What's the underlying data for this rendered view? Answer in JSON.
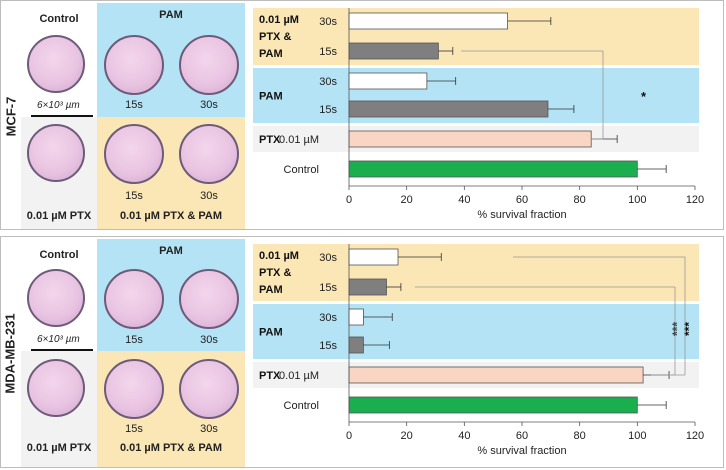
{
  "images": {
    "control": "Control",
    "pam": "PAM",
    "ptx": "0.01 µM PTX",
    "ptx_pam": "0.01 µM PTX & PAM",
    "t15": "15s",
    "t30": "30s",
    "scale": "6×10³ µm"
  },
  "chart_data": [
    {
      "type": "bar",
      "panel_label": "MCF-7",
      "xlabel": "% survival fraction",
      "xlim": [
        0,
        120
      ],
      "xticks": [
        0,
        20,
        40,
        60,
        80,
        100,
        120
      ],
      "groups": [
        {
          "label": "0.01 µM PTX & PAM",
          "bars": [
            {
              "label": "30s",
              "value": 55,
              "error": 15,
              "color": "#ffffff"
            },
            {
              "label": "15s",
              "value": 31,
              "error": 5,
              "color": "#7f7f7f"
            }
          ]
        },
        {
          "label": "PAM",
          "bars": [
            {
              "label": "30s",
              "value": 27,
              "error": 10,
              "color": "#ffffff"
            },
            {
              "label": "15s",
              "value": 69,
              "error": 9,
              "color": "#7f7f7f"
            }
          ]
        },
        {
          "label": "PTX",
          "bars": [
            {
              "label": "0.01 µM",
              "value": 84,
              "error": 9,
              "color": "#f9d5c4"
            }
          ]
        },
        {
          "label": "",
          "bars": [
            {
              "label": "Control",
              "value": 100,
              "error": 10,
              "color": "#1aae4f"
            }
          ]
        }
      ],
      "significance": [
        "*"
      ]
    },
    {
      "type": "bar",
      "panel_label": "MDA-MB-231",
      "xlabel": "% survival fraction",
      "xlim": [
        0,
        120
      ],
      "xticks": [
        0,
        20,
        40,
        60,
        80,
        100,
        120
      ],
      "groups": [
        {
          "label": "0.01 µM PTX & PAM",
          "bars": [
            {
              "label": "30s",
              "value": 17,
              "error": 15,
              "color": "#ffffff"
            },
            {
              "label": "15s",
              "value": 13,
              "error": 5,
              "color": "#7f7f7f"
            }
          ]
        },
        {
          "label": "PAM",
          "bars": [
            {
              "label": "30s",
              "value": 5,
              "error": 10,
              "color": "#ffffff"
            },
            {
              "label": "15s",
              "value": 5,
              "error": 9,
              "color": "#7f7f7f"
            }
          ]
        },
        {
          "label": "PTX",
          "bars": [
            {
              "label": "0.01 µM",
              "value": 102,
              "error": 9,
              "color": "#f9d5c4"
            }
          ]
        },
        {
          "label": "",
          "bars": [
            {
              "label": "Control",
              "value": 100,
              "error": 10,
              "color": "#1aae4f"
            }
          ]
        }
      ],
      "significance": [
        "***",
        "***"
      ]
    }
  ],
  "colors": {
    "pam_bg": "#b3e3f5",
    "ptx_pam_bg": "#fbe6b5",
    "ptx_bg": "#f2f2f2",
    "control_bg": "#ffffff"
  }
}
